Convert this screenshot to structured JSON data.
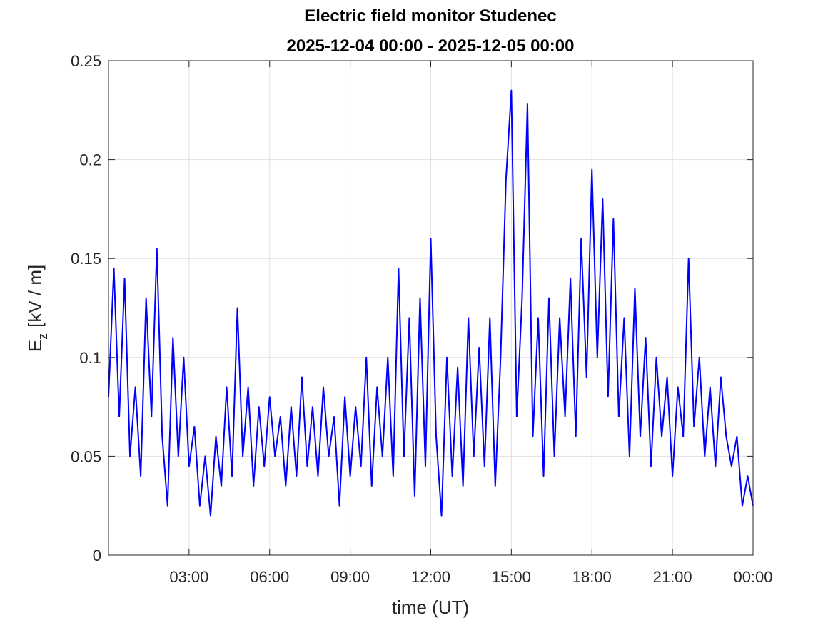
{
  "chart_data": {
    "type": "line",
    "title": "Electric field monitor Studenec",
    "subtitle": "2025-12-04 00:00 - 2025-12-05 00:00",
    "xlabel": "time (UT)",
    "ylabel": {
      "base": "E",
      "subscript": "z",
      "unit": "[kV / m]"
    },
    "xlim": [
      0,
      24
    ],
    "xticks": [
      {
        "value": 3,
        "label": "03:00"
      },
      {
        "value": 6,
        "label": "06:00"
      },
      {
        "value": 9,
        "label": "09:00"
      },
      {
        "value": 12,
        "label": "12:00"
      },
      {
        "value": 15,
        "label": "15:00"
      },
      {
        "value": 18,
        "label": "18:00"
      },
      {
        "value": 21,
        "label": "21:00"
      },
      {
        "value": 24,
        "label": "00:00"
      }
    ],
    "ylim": [
      0,
      0.25
    ],
    "yticks": [
      0,
      0.05,
      0.1,
      0.15,
      0.2,
      0.25
    ],
    "grid": true,
    "x": [
      0,
      0.2,
      0.4,
      0.6,
      0.8,
      1,
      1.2,
      1.4,
      1.6,
      1.8,
      2,
      2.2,
      2.4,
      2.6,
      2.8,
      3,
      3.2,
      3.4,
      3.6,
      3.8,
      4,
      4.2,
      4.4,
      4.6,
      4.8,
      5,
      5.2,
      5.4,
      5.6,
      5.8,
      6,
      6.2,
      6.4,
      6.6,
      6.8,
      7,
      7.2,
      7.4,
      7.6,
      7.8,
      8,
      8.2,
      8.4,
      8.6,
      8.8,
      9,
      9.2,
      9.4,
      9.6,
      9.8,
      10,
      10.2,
      10.4,
      10.6,
      10.8,
      11,
      11.2,
      11.4,
      11.6,
      11.8,
      12,
      12.2,
      12.4,
      12.6,
      12.8,
      13,
      13.2,
      13.4,
      13.6,
      13.8,
      14,
      14.2,
      14.4,
      14.6,
      14.8,
      15,
      15.2,
      15.4,
      15.6,
      15.8,
      16,
      16.2,
      16.4,
      16.6,
      16.8,
      17,
      17.2,
      17.4,
      17.6,
      17.8,
      18,
      18.2,
      18.4,
      18.6,
      18.8,
      19,
      19.2,
      19.4,
      19.6,
      19.8,
      20,
      20.2,
      20.4,
      20.6,
      20.8,
      21,
      21.2,
      21.4,
      21.6,
      21.8,
      22,
      22.2,
      22.4,
      22.6,
      22.8,
      23,
      23.2,
      23.4,
      23.6,
      23.8,
      24
    ],
    "series": [
      {
        "color": "#0000ff",
        "values": [
          0.08,
          0.145,
          0.07,
          0.14,
          0.05,
          0.085,
          0.04,
          0.13,
          0.07,
          0.155,
          0.06,
          0.025,
          0.11,
          0.05,
          0.1,
          0.045,
          0.065,
          0.025,
          0.05,
          0.02,
          0.06,
          0.035,
          0.085,
          0.04,
          0.125,
          0.05,
          0.085,
          0.035,
          0.075,
          0.045,
          0.08,
          0.05,
          0.07,
          0.035,
          0.075,
          0.04,
          0.09,
          0.045,
          0.075,
          0.04,
          0.085,
          0.05,
          0.07,
          0.025,
          0.08,
          0.04,
          0.075,
          0.045,
          0.1,
          0.035,
          0.085,
          0.05,
          0.1,
          0.04,
          0.145,
          0.05,
          0.12,
          0.03,
          0.13,
          0.045,
          0.16,
          0.06,
          0.02,
          0.1,
          0.04,
          0.095,
          0.035,
          0.12,
          0.05,
          0.105,
          0.045,
          0.12,
          0.035,
          0.1,
          0.19,
          0.235,
          0.07,
          0.13,
          0.228,
          0.06,
          0.12,
          0.04,
          0.13,
          0.05,
          0.12,
          0.07,
          0.14,
          0.06,
          0.16,
          0.09,
          0.195,
          0.1,
          0.18,
          0.08,
          0.17,
          0.07,
          0.12,
          0.05,
          0.135,
          0.06,
          0.11,
          0.045,
          0.1,
          0.06,
          0.09,
          0.04,
          0.085,
          0.06,
          0.15,
          0.065,
          0.1,
          0.05,
          0.085,
          0.045,
          0.09,
          0.06,
          0.045,
          0.06,
          0.025,
          0.04,
          0.025
        ]
      }
    ]
  }
}
